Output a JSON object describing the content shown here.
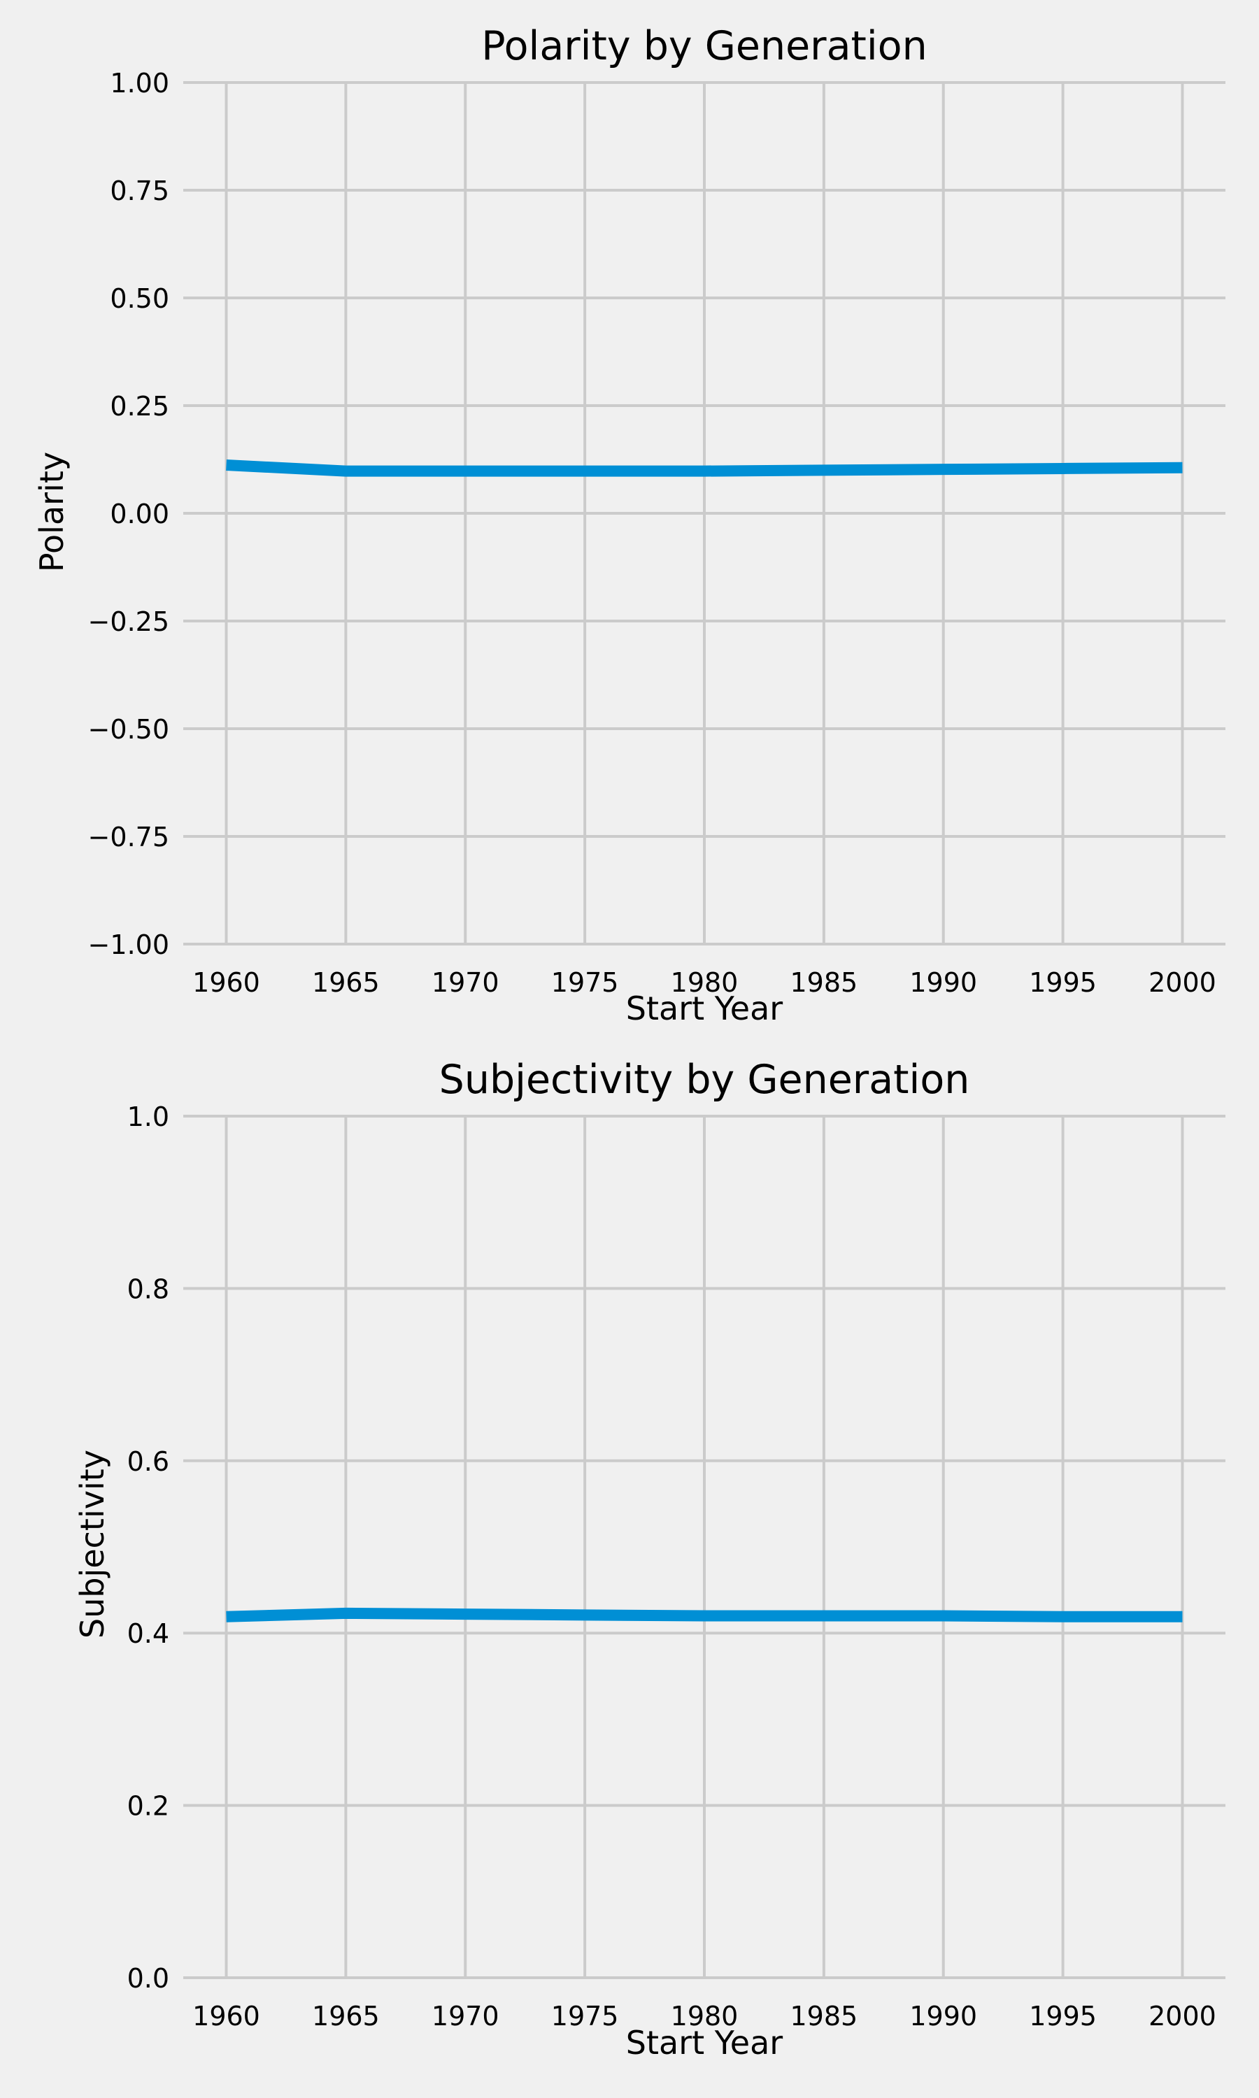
{
  "chart_data": [
    {
      "type": "line",
      "title": "Polarity by Generation",
      "xlabel": "Start Year",
      "ylabel": "Polarity",
      "x": [
        1960,
        1965,
        1970,
        1975,
        1980,
        1985,
        1990,
        1995,
        2000
      ],
      "series": [
        {
          "values": [
            0.112,
            0.098,
            0.098,
            0.098,
            0.098,
            0.1,
            0.102,
            0.104,
            0.106
          ]
        }
      ],
      "xticks": [
        "1960",
        "1965",
        "1970",
        "1975",
        "1980",
        "1985",
        "1990",
        "1995",
        "2000"
      ],
      "yticks": [
        -1.0,
        -0.75,
        -0.5,
        -0.25,
        0.0,
        0.25,
        0.5,
        0.75,
        1.0
      ],
      "ytick_labels": [
        "−1.00",
        "−0.75",
        "−0.50",
        "−0.25",
        "0.00",
        "0.25",
        "0.50",
        "0.75",
        "1.00"
      ],
      "xlim": [
        1958.2,
        2001.8
      ],
      "ylim": [
        -1.0,
        1.0
      ],
      "grid": true,
      "color": "#008fd5"
    },
    {
      "type": "line",
      "title": "Subjectivity by Generation",
      "xlabel": "Start Year",
      "ylabel": "Subjectivity",
      "x": [
        1960,
        1965,
        1970,
        1975,
        1980,
        1985,
        1990,
        1995,
        2000
      ],
      "series": [
        {
          "values": [
            0.419,
            0.423,
            0.422,
            0.421,
            0.42,
            0.42,
            0.42,
            0.419,
            0.419
          ]
        }
      ],
      "xticks": [
        "1960",
        "1965",
        "1970",
        "1975",
        "1980",
        "1985",
        "1990",
        "1995",
        "2000"
      ],
      "yticks": [
        0.0,
        0.2,
        0.4,
        0.6,
        0.8,
        1.0
      ],
      "ytick_labels": [
        "0.0",
        "0.2",
        "0.4",
        "0.6",
        "0.8",
        "1.0"
      ],
      "xlim": [
        1958.2,
        2001.8
      ],
      "ylim": [
        0.0,
        1.0
      ],
      "grid": true,
      "color": "#008fd5"
    }
  ]
}
